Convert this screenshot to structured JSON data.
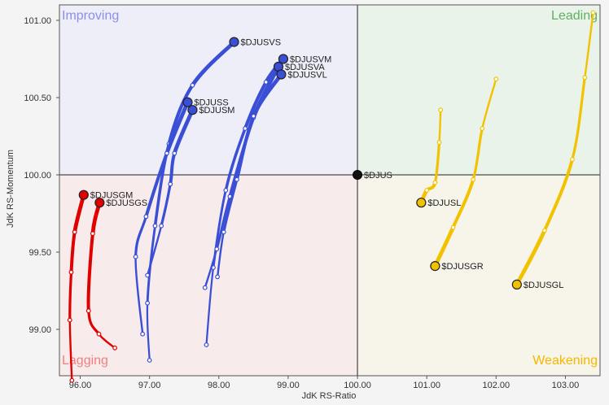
{
  "chart_data": {
    "type": "scatter",
    "subtype": "relative-rotation-graph",
    "xlabel": "JdK RS-Ratio",
    "ylabel": "JdK RS-Momentum",
    "xlim": [
      95.7,
      103.5
    ],
    "ylim": [
      98.7,
      101.1
    ],
    "center": {
      "x": 100.0,
      "y": 100.0
    },
    "x_ticks": [
      "96.00",
      "97.00",
      "98.00",
      "99.00",
      "100.00",
      "101.00",
      "102.00",
      "103.00"
    ],
    "y_ticks": [
      "99.00",
      "99.50",
      "100.00",
      "100.50",
      "101.00"
    ],
    "x_tick_values": [
      96,
      97,
      98,
      99,
      100,
      101,
      102,
      103
    ],
    "y_tick_values": [
      99.0,
      99.5,
      100.0,
      100.5,
      101.0
    ],
    "grid": false,
    "quadrants": {
      "improving": {
        "label": "Improving",
        "color": "#8a8fe8",
        "fill": "#eeeef8"
      },
      "leading": {
        "label": "Leading",
        "color": "#5fb05f",
        "fill": "#eaf3ea"
      },
      "lagging": {
        "label": "Lagging",
        "color": "#f08080",
        "fill": "#f8ebeb"
      },
      "weakening": {
        "label": "Weakening",
        "color": "#f2b800",
        "fill": "#f7f4ea"
      }
    },
    "benchmark": {
      "name": "$DJUS",
      "x": 100.0,
      "y": 100.0,
      "color": "#111111"
    },
    "series": [
      {
        "name": "$DJUSVS",
        "color": "#3a4fd6",
        "label_pos": "right",
        "points": [
          [
            97.0,
            98.8
          ],
          [
            96.97,
            99.17
          ],
          [
            97.08,
            99.67
          ],
          [
            97.28,
            100.2
          ],
          [
            97.62,
            100.58
          ],
          [
            98.22,
            100.86
          ]
        ]
      },
      {
        "name": "$DJUSVM",
        "color": "#3a4fd6",
        "label_pos": "right",
        "points": [
          [
            97.82,
            98.9
          ],
          [
            97.92,
            99.4
          ],
          [
            98.1,
            99.9
          ],
          [
            98.38,
            100.3
          ],
          [
            98.68,
            100.6
          ],
          [
            98.93,
            100.75
          ]
        ]
      },
      {
        "name": "$DJUSVA",
        "color": "#3a4fd6",
        "label_pos": "right",
        "points": [
          [
            97.8,
            99.27
          ],
          [
            97.97,
            99.52
          ],
          [
            98.16,
            99.86
          ],
          [
            98.5,
            100.37
          ],
          [
            98.86,
            100.7
          ]
        ]
      },
      {
        "name": "$DJUSVL",
        "color": "#3a4fd6",
        "label_pos": "right",
        "points": [
          [
            97.98,
            99.34
          ],
          [
            98.07,
            99.63
          ],
          [
            98.26,
            99.97
          ],
          [
            98.5,
            100.38
          ],
          [
            98.9,
            100.65
          ]
        ]
      },
      {
        "name": "$DJUSS",
        "color": "#3a4fd6",
        "label_pos": "right",
        "points": [
          [
            96.9,
            98.97
          ],
          [
            96.8,
            99.47
          ],
          [
            96.95,
            99.73
          ],
          [
            97.25,
            100.14
          ],
          [
            97.55,
            100.47
          ]
        ]
      },
      {
        "name": "$DJUSM",
        "color": "#3a4fd6",
        "label_pos": "right",
        "points": [
          [
            96.97,
            99.35
          ],
          [
            97.17,
            99.67
          ],
          [
            97.3,
            99.94
          ],
          [
            97.36,
            100.14
          ],
          [
            97.62,
            100.42
          ]
        ]
      },
      {
        "name": "$DJUSGM",
        "color": "#e00000",
        "label_pos": "right",
        "points": [
          [
            95.88,
            98.67
          ],
          [
            95.85,
            99.06
          ],
          [
            95.87,
            99.37
          ],
          [
            95.92,
            99.63
          ],
          [
            96.05,
            99.87
          ]
        ]
      },
      {
        "name": "$DJUSGS",
        "color": "#e00000",
        "label_pos": "right",
        "points": [
          [
            96.5,
            98.88
          ],
          [
            96.27,
            98.97
          ],
          [
            96.12,
            99.12
          ],
          [
            96.18,
            99.62
          ],
          [
            96.28,
            99.82
          ]
        ]
      },
      {
        "name": "$DJUSL",
        "color": "#f2c200",
        "label_pos": "right",
        "points": [
          [
            101.2,
            100.42
          ],
          [
            101.18,
            100.21
          ],
          [
            101.12,
            99.95
          ],
          [
            101.0,
            99.9
          ],
          [
            100.92,
            99.82
          ]
        ]
      },
      {
        "name": "$DJUSGR",
        "color": "#f2c200",
        "label_pos": "right",
        "points": [
          [
            102.0,
            100.62
          ],
          [
            101.8,
            100.3
          ],
          [
            101.67,
            99.97
          ],
          [
            101.38,
            99.66
          ],
          [
            101.12,
            99.41
          ]
        ]
      },
      {
        "name": "$DJUSGL",
        "color": "#f2c200",
        "label_pos": "right",
        "points": [
          [
            103.4,
            101.05
          ],
          [
            103.28,
            100.63
          ],
          [
            103.1,
            100.1
          ],
          [
            102.7,
            99.64
          ],
          [
            102.3,
            99.29
          ]
        ]
      }
    ]
  }
}
